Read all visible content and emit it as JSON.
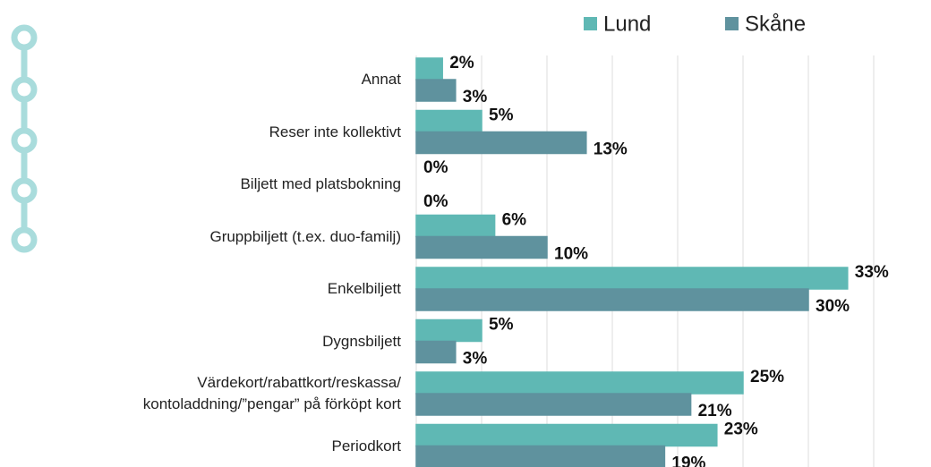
{
  "chart_data": {
    "type": "bar",
    "orientation": "horizontal",
    "categories": [
      "Annat",
      "Reser inte kollektivt",
      "Biljett med platsbokning",
      "Gruppbiljett (t.ex. duo-familj)",
      "Enkelbiljett",
      "Dygnsbiljett",
      "Värdekort/rabattkort/reskassa/ kontoladdning/”pengar” på förköpt kort",
      "Periodkort"
    ],
    "series": [
      {
        "name": "Lund",
        "color": "#5fb8b4",
        "values": [
          2,
          5,
          0,
          6,
          33,
          5,
          25,
          23
        ],
        "value_labels": [
          "2%",
          "5%",
          "0%",
          "6%",
          "33%",
          "5%",
          "25%",
          "23%"
        ]
      },
      {
        "name": "Skåne",
        "color": "#5f929e",
        "values": [
          3,
          13,
          0,
          10,
          30,
          3,
          21,
          19
        ],
        "value_labels": [
          "3%",
          "13%",
          "0%",
          "10%",
          "30%",
          "3%",
          "21%",
          "19%"
        ]
      }
    ],
    "xlim": [
      0,
      37
    ],
    "xticks": [
      0,
      5,
      10,
      15,
      20,
      25,
      30,
      35
    ],
    "grid": true,
    "legend": "top"
  }
}
